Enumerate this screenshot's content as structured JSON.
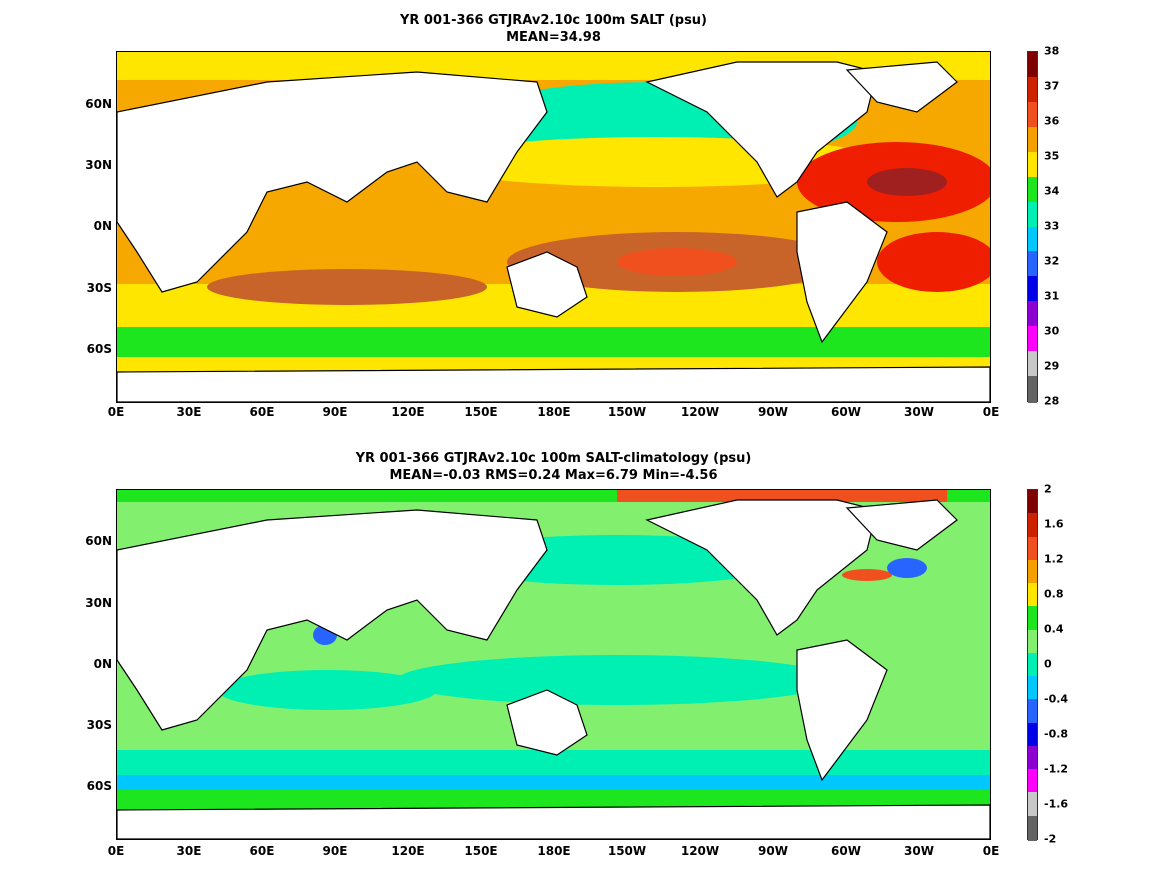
{
  "panels": [
    {
      "title_line1": "YR 001-366 GTJRAv2.10c 100m SALT (psu)",
      "title_line2": "MEAN=34.98",
      "colorbar_labels": [
        "38",
        "37",
        "36",
        "35",
        "34",
        "33",
        "32",
        "31",
        "30",
        "29",
        "28"
      ],
      "colorbar_colors": [
        "#7f0000",
        "#cc2200",
        "#f0501e",
        "#f5a000",
        "#ffe600",
        "#1ee61e",
        "#00f0b4",
        "#00c8ff",
        "#2864ff",
        "#0000e6",
        "#8c00d2",
        "#ff00ff",
        "#c8c8c8",
        "#646464"
      ],
      "colors": {
        "ocean": "#f7a800",
        "land": "#ffffff",
        "coast": "#000000"
      }
    },
    {
      "title_line1": "YR 001-366 GTJRAv2.10c 100m SALT-climatology (psu)",
      "title_line2": "MEAN=-0.03   RMS=0.24   Max=6.79   Min=-4.56",
      "colorbar_labels": [
        "2",
        "1.6",
        "1.2",
        "0.8",
        "0.4",
        "0",
        "-0.4",
        "-0.8",
        "-1.2",
        "-1.6",
        "-2"
      ],
      "colorbar_colors": [
        "#7f0000",
        "#cc2200",
        "#f0501e",
        "#f5a000",
        "#ffe600",
        "#1ee61e",
        "#82f06e",
        "#00f0b4",
        "#00c8ff",
        "#2864ff",
        "#0000e6",
        "#8c00d2",
        "#ff00ff",
        "#c8c8c8",
        "#646464"
      ],
      "colors": {
        "ocean": "#7de86e",
        "land": "#ffffff",
        "coast": "#000000"
      }
    }
  ],
  "x_ticks": [
    "0E",
    "30E",
    "60E",
    "90E",
    "120E",
    "150E",
    "180E",
    "150W",
    "120W",
    "90W",
    "60W",
    "30W",
    "0E"
  ],
  "y_ticks": [
    "60N",
    "30N",
    "0N",
    "30S",
    "60S"
  ]
}
